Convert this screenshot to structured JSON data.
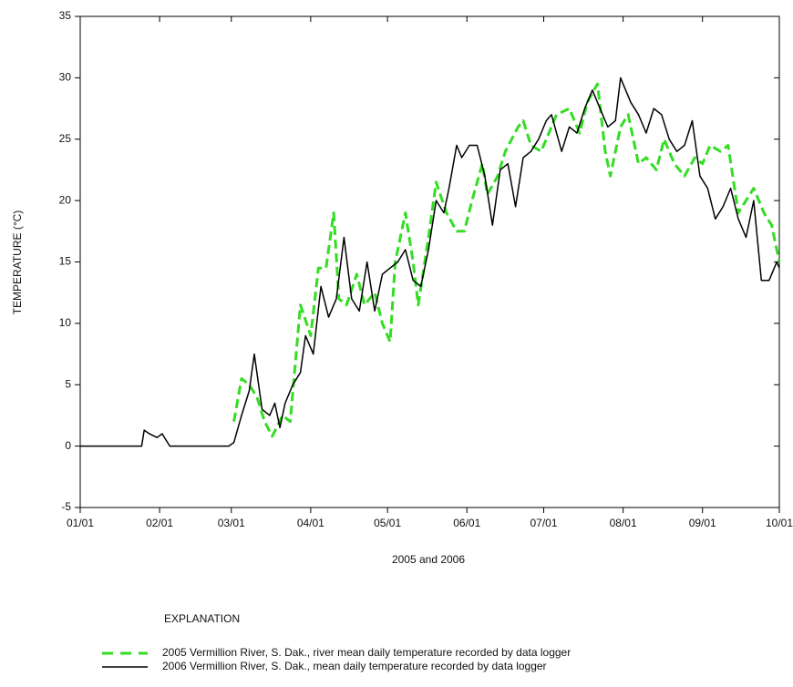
{
  "chart_data": {
    "type": "line",
    "ylabel": "TEMPERATURE (°C)",
    "xlabel": "2005 and 2006",
    "legend_title": "EXPLANATION",
    "xlim": [
      0,
      273
    ],
    "xticks": [
      {
        "value": 0,
        "label": "01/01"
      },
      {
        "value": 31,
        "label": "02/01"
      },
      {
        "value": 59,
        "label": "03/01"
      },
      {
        "value": 90,
        "label": "04/01"
      },
      {
        "value": 120,
        "label": "05/01"
      },
      {
        "value": 151,
        "label": "06/01"
      },
      {
        "value": 181,
        "label": "07/01"
      },
      {
        "value": 212,
        "label": "08/01"
      },
      {
        "value": 243,
        "label": "09/01"
      },
      {
        "value": 273,
        "label": "10/01"
      }
    ],
    "ylim": [
      -5,
      35
    ],
    "yticks": [
      -5,
      0,
      5,
      10,
      15,
      20,
      25,
      30,
      35
    ],
    "series": [
      {
        "name": "2005 Vermillion River, S. Dak.,  river mean daily temperature recorded by data logger",
        "color": "#33dd22",
        "dash": true,
        "x": [
          60,
          63,
          66,
          69,
          72,
          75,
          79,
          82,
          86,
          90,
          93,
          96,
          99,
          101,
          104,
          108,
          111,
          115,
          118,
          121,
          123,
          127,
          130,
          132,
          136,
          139,
          143,
          147,
          150,
          153,
          157,
          159,
          163,
          166,
          171,
          173,
          176,
          180,
          186,
          191,
          195,
          198,
          202,
          205,
          207,
          211,
          214,
          218,
          221,
          225,
          228,
          232,
          236,
          240,
          243,
          246,
          250,
          253,
          257,
          260,
          263,
          267,
          270,
          273
        ],
        "values": [
          2,
          5.5,
          5,
          4,
          2,
          0.8,
          2.5,
          2,
          11.5,
          9,
          14.5,
          14.5,
          19,
          12,
          11.5,
          14,
          11.5,
          12.5,
          10,
          8.5,
          15,
          19,
          15,
          11.5,
          17,
          21.5,
          19,
          17.5,
          17.5,
          20,
          23,
          20.5,
          22,
          24,
          26,
          26.5,
          24.5,
          24,
          27,
          27.5,
          25.5,
          28,
          29.5,
          24,
          22,
          26,
          27,
          23,
          23.5,
          22.5,
          25,
          23,
          22,
          23.5,
          23,
          24.5,
          24,
          24.5,
          19,
          20,
          21,
          19,
          18,
          15
        ]
      },
      {
        "name": "2006 Vermillion River, S. Dak., mean daily temperature recorded by data logger",
        "color": "#000000",
        "dash": false,
        "x": [
          0,
          24,
          25,
          27,
          30,
          32,
          35,
          58,
          60,
          63,
          66,
          68,
          71,
          74,
          76,
          78,
          80,
          83,
          86,
          88,
          91,
          94,
          97,
          100,
          103,
          106,
          109,
          112,
          115,
          118,
          121,
          124,
          127,
          130,
          133,
          136,
          139,
          142,
          144,
          147,
          149,
          152,
          155,
          158,
          161,
          164,
          167,
          170,
          173,
          176,
          179,
          182,
          184,
          188,
          191,
          194,
          197,
          200,
          203,
          206,
          209,
          211,
          215,
          218,
          221,
          224,
          227,
          230,
          233,
          236,
          239,
          242,
          245,
          248,
          251,
          254,
          257,
          260,
          263,
          266,
          269,
          272,
          273
        ],
        "values": [
          0,
          0,
          1.3,
          1,
          0.7,
          1,
          0,
          0,
          0.3,
          2.5,
          4.5,
          7.5,
          3,
          2.5,
          3.5,
          1.5,
          3.5,
          5,
          6,
          9,
          7.5,
          13,
          10.5,
          12,
          17,
          12,
          11,
          15,
          11,
          14,
          14.5,
          15,
          16,
          13.5,
          13,
          16,
          20,
          19,
          21,
          24.5,
          23.5,
          24.5,
          24.5,
          22,
          18,
          22.5,
          23,
          19.5,
          23.5,
          24,
          25,
          26.5,
          27,
          24,
          26,
          25.5,
          27.5,
          29,
          27.5,
          26,
          26.5,
          30,
          28,
          27,
          25.5,
          27.5,
          27,
          25,
          24,
          24.5,
          26.5,
          22,
          21,
          18.5,
          19.5,
          21,
          18.5,
          17,
          20,
          13.5,
          13.5,
          15,
          14.5
        ]
      }
    ]
  }
}
